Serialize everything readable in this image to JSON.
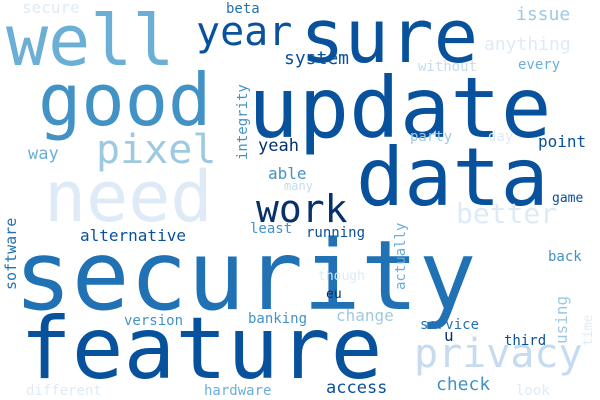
{
  "palette": {
    "navy": "#08306b",
    "dark_blue": "#08519c",
    "blue": "#2171b5",
    "medium_blue": "#4292c6",
    "sky_blue": "#6baed6",
    "light_blue": "#9ecae1",
    "pale_blue": "#c6dbef",
    "very_pale_blue": "#deebf7"
  },
  "words": {
    "security": "security",
    "feature": "feature",
    "update": "update",
    "data": "data",
    "sure": "sure",
    "good": "good",
    "well": "well",
    "need": "need",
    "privacy": "privacy",
    "pixel": "pixel",
    "year": "year",
    "work": "work",
    "better": "better",
    "system": "system",
    "check": "check",
    "access": "access",
    "alternative": "alternative",
    "software": "software",
    "integrity": "integrity",
    "yeah": "yeah",
    "able": "able",
    "way": "way",
    "running": "running",
    "least": "least",
    "actually": "actually",
    "beta": "beta",
    "issue": "issue",
    "anything": "anything",
    "without": "without",
    "every": "every",
    "point": "point",
    "party": "party",
    "day": "day",
    "game": "game",
    "back": "back",
    "using": "using",
    "time": "time",
    "third": "third",
    "service": "service",
    "u": "u",
    "eu": "eu",
    "though": "though",
    "change": "change",
    "banking": "banking",
    "version": "version",
    "hardware": "hardware",
    "different": "different",
    "look": "look",
    "secure": "secure",
    "many": "many"
  }
}
